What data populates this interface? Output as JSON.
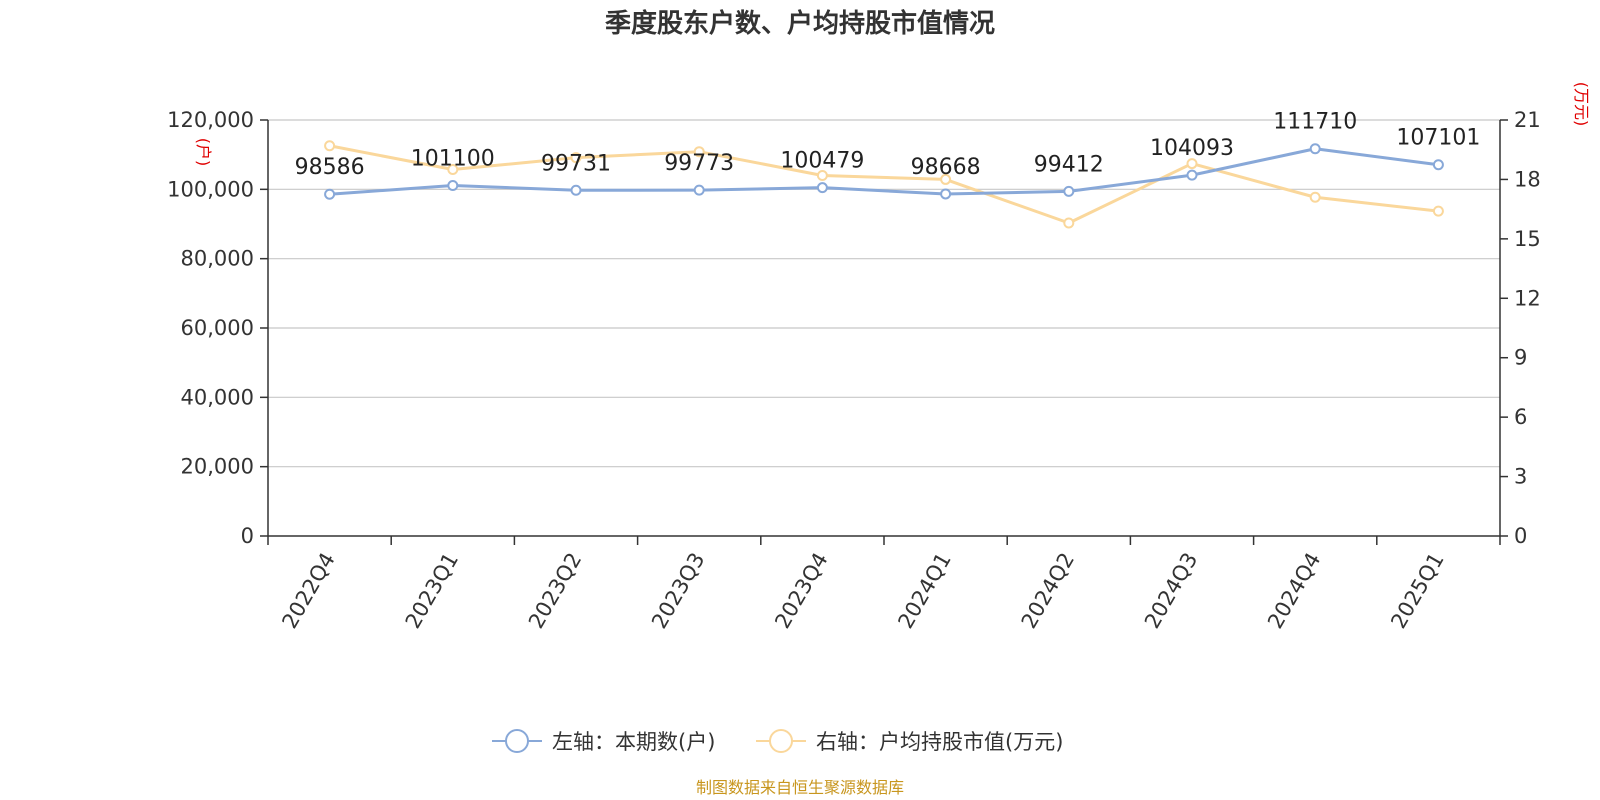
{
  "title": "季度股东户数、户均持股市值情况",
  "left_unit": "(户)",
  "right_unit": "(万元)",
  "source": "制图数据来自恒生聚源数据库",
  "colors": {
    "series1": "#88a8d8",
    "series2": "#fad79b",
    "grid": "#c8c8c8",
    "axis": "#333333",
    "unit": "#e00000",
    "source": "#c8961e"
  },
  "chart_data": {
    "type": "line",
    "title": "季度股东户数、户均持股市值情况",
    "categories": [
      "2022Q4",
      "2023Q1",
      "2023Q2",
      "2023Q3",
      "2023Q4",
      "2024Q1",
      "2024Q2",
      "2024Q3",
      "2024Q4",
      "2025Q1"
    ],
    "left_axis": {
      "label": "(户)",
      "ylim": [
        0,
        120000
      ],
      "ticks": [
        0,
        20000,
        40000,
        60000,
        80000,
        100000,
        120000
      ],
      "tick_labels": [
        "0",
        "20,000",
        "40,000",
        "60,000",
        "80,000",
        "100,000",
        "120,000"
      ]
    },
    "right_axis": {
      "label": "(万元)",
      "ylim": [
        0,
        21
      ],
      "ticks": [
        0,
        3,
        6,
        9,
        12,
        15,
        18,
        21
      ],
      "tick_labels": [
        "0",
        "3",
        "6",
        "9",
        "12",
        "15",
        "18",
        "21"
      ]
    },
    "series": [
      {
        "name": "左轴：本期数(户)",
        "axis": "left",
        "values": [
          98586,
          101100,
          99731,
          99773,
          100479,
          98668,
          99412,
          104093,
          111710,
          107101
        ],
        "labels": [
          "98586",
          "101100",
          "99731",
          "99773",
          "100479",
          "98668",
          "99412",
          "104093",
          "111710",
          "107101"
        ]
      },
      {
        "name": "右轴：户均持股市值(万元)",
        "axis": "right",
        "values": [
          19.7,
          18.5,
          19.1,
          19.4,
          18.2,
          18.0,
          15.8,
          18.8,
          17.1,
          16.4
        ]
      }
    ],
    "grid": true,
    "legend_position": "bottom"
  }
}
